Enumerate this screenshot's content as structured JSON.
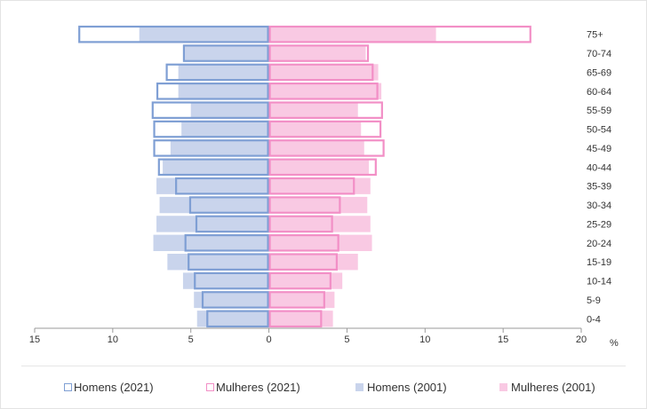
{
  "chart_data": {
    "type": "bar",
    "orientation": "horizontal",
    "categories": [
      "75+",
      "70-74",
      "65-69",
      "60-64",
      "55-59",
      "50-54",
      "45-49",
      "40-44",
      "35-39",
      "30-34",
      "25-29",
      "20-24",
      "15-19",
      "10-14",
      "5-9",
      "0-4"
    ],
    "series": [
      {
        "name": "Homens (2021)",
        "side": "left",
        "style": "outline",
        "color": "#7f9fd4",
        "values": [
          12.2,
          5.5,
          6.6,
          7.2,
          7.5,
          7.4,
          7.4,
          7.1,
          6.0,
          5.1,
          4.7,
          5.4,
          5.2,
          4.8,
          4.3,
          4.0
        ]
      },
      {
        "name": "Mulheres (2021)",
        "side": "right",
        "style": "outline",
        "color": "#f28fc6",
        "values": [
          16.8,
          6.4,
          6.7,
          7.0,
          7.3,
          7.2,
          7.4,
          6.9,
          5.5,
          4.6,
          4.1,
          4.5,
          4.4,
          4.0,
          3.6,
          3.4
        ]
      },
      {
        "name": "Homens (2001)",
        "side": "left",
        "style": "fill",
        "color": "#c9d4ec",
        "values": [
          8.3,
          5.4,
          5.8,
          5.8,
          5.0,
          5.6,
          6.3,
          6.8,
          7.2,
          7.0,
          7.2,
          7.4,
          6.5,
          5.5,
          4.8,
          4.6
        ]
      },
      {
        "name": "Mulheres (2001)",
        "side": "right",
        "style": "fill",
        "color": "#f9c9e3",
        "values": [
          10.7,
          6.2,
          7.0,
          7.2,
          5.7,
          5.9,
          6.1,
          6.4,
          6.5,
          6.3,
          6.5,
          6.6,
          5.7,
          4.7,
          4.2,
          4.1
        ]
      }
    ],
    "xticks": [
      "15",
      "10",
      "5",
      "0",
      "5",
      "10",
      "15",
      "20"
    ],
    "x_tick_values": [
      -15,
      -10,
      -5,
      0,
      5,
      10,
      15,
      20
    ],
    "xlim": [
      -15,
      20
    ],
    "unit_label": "%",
    "grid": false,
    "legend_position": "bottom"
  },
  "colors": {
    "homens_outline": "#7f9fd4",
    "mulheres_outline": "#f28fc6",
    "homens_fill": "#c9d4ec",
    "mulheres_fill": "#f9c9e3",
    "axis": "#9a9a9a",
    "text": "#333333"
  }
}
